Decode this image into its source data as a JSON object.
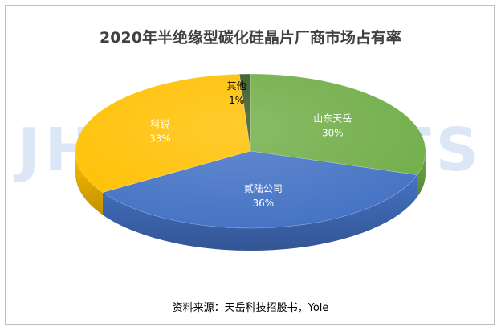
{
  "title": "2020年半绝缘型碳化硅晶片厂商市场占有率",
  "source": "资料来源：天岳科技招股书，Yole",
  "watermark": "JHJINSIGHTS",
  "chart_data": {
    "type": "pie",
    "title": "2020年半绝缘型碳化硅晶片厂商市场占有率",
    "slices": [
      {
        "name": "山东天岳",
        "value": 30,
        "label": "30%",
        "color": "#70ad47",
        "label_color": "#ffffff"
      },
      {
        "name": "贰陆公司",
        "value": 36,
        "label": "36%",
        "color": "#4472c4",
        "label_color": "#ffffff"
      },
      {
        "name": "科锐",
        "value": 33,
        "label": "33%",
        "color": "#ffc000",
        "label_color": "#ffffff"
      },
      {
        "name": "其他",
        "value": 1,
        "label": "1%",
        "color": "#375623",
        "label_color": "#000000"
      }
    ]
  }
}
